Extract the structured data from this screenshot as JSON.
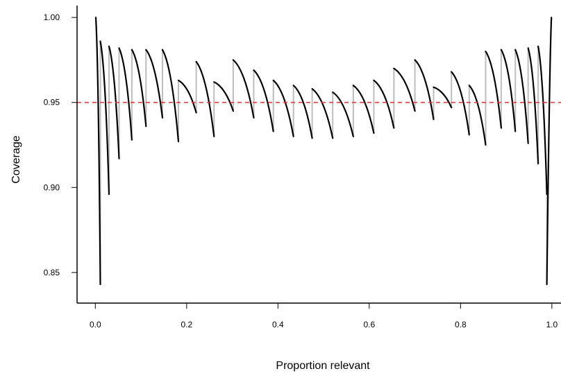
{
  "chart_data": {
    "type": "line",
    "title": "",
    "xlabel": "Proportion relevant",
    "ylabel": "Coverage",
    "xlim": [
      -0.04,
      1.02
    ],
    "ylim": [
      0.832,
      1.007
    ],
    "x_ticks": [
      {
        "value": 0.0,
        "label": "0.0"
      },
      {
        "value": 0.2,
        "label": "0.2"
      },
      {
        "value": 0.4,
        "label": "0.4"
      },
      {
        "value": 0.6,
        "label": "0.6"
      },
      {
        "value": 0.8,
        "label": "0.8"
      },
      {
        "value": 1.0,
        "label": "1.0"
      }
    ],
    "y_ticks": [
      {
        "value": 0.85,
        "label": "0.85"
      },
      {
        "value": 0.9,
        "label": "0.90"
      },
      {
        "value": 0.95,
        "label": "0.95"
      },
      {
        "value": 1.0,
        "label": "1.00"
      }
    ],
    "reference_line": {
      "y": 0.95,
      "color": "#e8383d",
      "style": "dashed"
    },
    "colors": {
      "curve": "#000000",
      "jumps": "#bdbdbd"
    },
    "grid": false,
    "series": [
      {
        "segments": [
          {
            "x": [
              0.001,
              0.011
            ],
            "y": [
              1.0,
              0.843
            ]
          },
          {
            "x": [
              0.011,
              0.03
            ],
            "y": [
              0.986,
              0.896
            ]
          },
          {
            "x": [
              0.03,
              0.052
            ],
            "y": [
              0.983,
              0.917
            ]
          },
          {
            "x": [
              0.052,
              0.08
            ],
            "y": [
              0.982,
              0.928
            ]
          },
          {
            "x": [
              0.08,
              0.111
            ],
            "y": [
              0.981,
              0.936
            ]
          },
          {
            "x": [
              0.111,
              0.147
            ],
            "y": [
              0.981,
              0.941
            ]
          },
          {
            "x": [
              0.147,
              0.182
            ],
            "y": [
              0.981,
              0.927
            ]
          },
          {
            "x": [
              0.182,
              0.221
            ],
            "y": [
              0.963,
              0.944
            ]
          },
          {
            "x": [
              0.221,
              0.26
            ],
            "y": [
              0.974,
              0.93
            ]
          },
          {
            "x": [
              0.26,
              0.302
            ],
            "y": [
              0.962,
              0.945
            ]
          },
          {
            "x": [
              0.302,
              0.347
            ],
            "y": [
              0.975,
              0.941
            ]
          },
          {
            "x": [
              0.347,
              0.39
            ],
            "y": [
              0.969,
              0.933
            ]
          },
          {
            "x": [
              0.39,
              0.434
            ],
            "y": [
              0.963,
              0.93
            ]
          },
          {
            "x": [
              0.434,
              0.475
            ],
            "y": [
              0.96,
              0.929
            ]
          },
          {
            "x": [
              0.475,
              0.52
            ],
            "y": [
              0.958,
              0.929
            ]
          },
          {
            "x": [
              0.52,
              0.565
            ],
            "y": [
              0.956,
              0.93
            ]
          },
          {
            "x": [
              0.565,
              0.61
            ],
            "y": [
              0.96,
              0.932
            ]
          },
          {
            "x": [
              0.61,
              0.654
            ],
            "y": [
              0.963,
              0.935
            ]
          },
          {
            "x": [
              0.654,
              0.7
            ],
            "y": [
              0.97,
              0.945
            ]
          },
          {
            "x": [
              0.7,
              0.741
            ],
            "y": [
              0.975,
              0.94
            ]
          },
          {
            "x": [
              0.741,
              0.78
            ],
            "y": [
              0.959,
              0.947
            ]
          },
          {
            "x": [
              0.78,
              0.819
            ],
            "y": [
              0.968,
              0.931
            ]
          },
          {
            "x": [
              0.819,
              0.855
            ],
            "y": [
              0.96,
              0.925
            ]
          },
          {
            "x": [
              0.855,
              0.889
            ],
            "y": [
              0.98,
              0.935
            ]
          },
          {
            "x": [
              0.889,
              0.92
            ],
            "y": [
              0.981,
              0.933
            ]
          },
          {
            "x": [
              0.92,
              0.948
            ],
            "y": [
              0.981,
              0.926
            ]
          },
          {
            "x": [
              0.948,
              0.97
            ],
            "y": [
              0.982,
              0.914
            ]
          },
          {
            "x": [
              0.97,
              0.989
            ],
            "y": [
              0.983,
              0.896
            ]
          },
          {
            "x": [
              0.989,
              0.999
            ],
            "y": [
              0.843,
              1.0
            ]
          }
        ]
      }
    ]
  }
}
